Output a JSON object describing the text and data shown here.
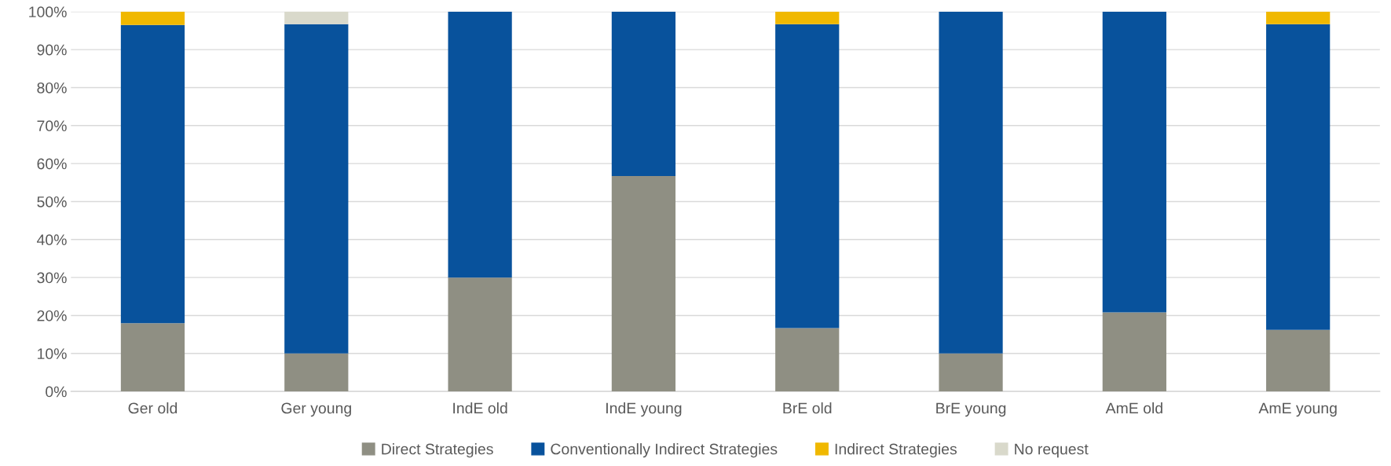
{
  "chart_data": {
    "type": "bar",
    "stacked": true,
    "categories": [
      "Ger old",
      "Ger young",
      "IndE old",
      "IndE young",
      "BrE old",
      "BrE young",
      "AmE old",
      "AmE young"
    ],
    "series": [
      {
        "name": "Direct Strategies",
        "color": "#8f8f83",
        "values": [
          18,
          10,
          30,
          56.7,
          16.7,
          10,
          20.8,
          16.2
        ]
      },
      {
        "name": "Conventionally Indirect Strategies",
        "color": "#08529c",
        "values": [
          78.5,
          86.7,
          70,
          43.3,
          80,
          90,
          79.2,
          80.5
        ]
      },
      {
        "name": "Indirect Strategies",
        "color": "#f0b800",
        "values": [
          3.5,
          0,
          0,
          0,
          3.3,
          0,
          0,
          3.3
        ]
      },
      {
        "name": "No request",
        "color": "#d9d9cb",
        "values": [
          0,
          3.3,
          0,
          0,
          0,
          0,
          0,
          0
        ]
      }
    ],
    "ylim": [
      0,
      100
    ],
    "yticks": [
      {
        "value": 0,
        "label": "0%"
      },
      {
        "value": 10,
        "label": "10%"
      },
      {
        "value": 20,
        "label": "20%"
      },
      {
        "value": 30,
        "label": "30%"
      },
      {
        "value": 40,
        "label": "40%"
      },
      {
        "value": 50,
        "label": "50%"
      },
      {
        "value": 60,
        "label": "60%"
      },
      {
        "value": 70,
        "label": "70%"
      },
      {
        "value": 80,
        "label": "80%"
      },
      {
        "value": 90,
        "label": "90%"
      },
      {
        "value": 100,
        "label": "100%"
      }
    ],
    "grid": "y",
    "legend": "bottom"
  }
}
